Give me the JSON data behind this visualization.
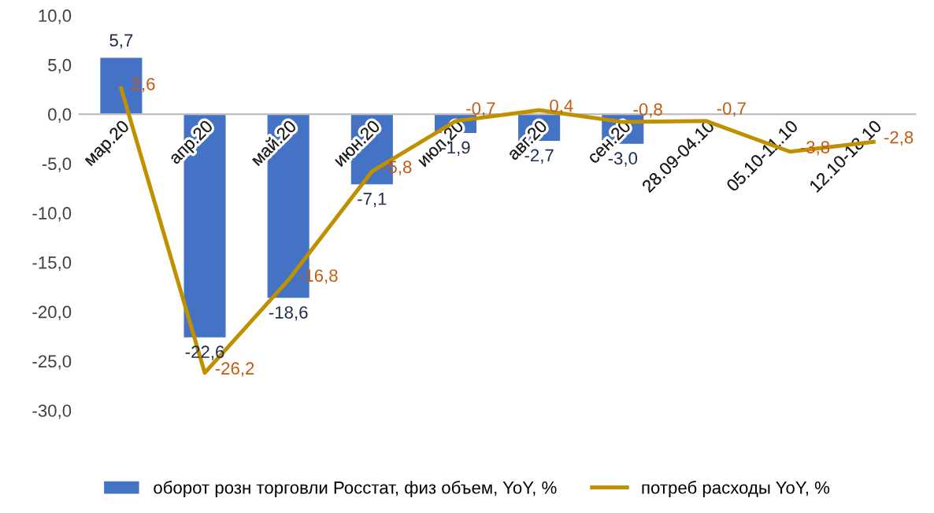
{
  "chart_data": {
    "type": "bar",
    "categories": [
      "мар.20",
      "апр.20",
      "май.20",
      "июн.20",
      "июл.20",
      "авг.20",
      "сен.20",
      "28.09-04.10",
      "05.10-11.10",
      "12.10-18.10"
    ],
    "series": [
      {
        "name": "оборот розн торговли Росстат, физ объем, YoY, %",
        "color": "#4472c4",
        "values": [
          5.7,
          -22.6,
          -18.6,
          -7.1,
          -1.9,
          -2.7,
          -3.0,
          null,
          null,
          null
        ],
        "value_labels": [
          "5,7",
          "-22,6",
          "-18,6",
          "-7,1",
          "-1,9",
          "-2,7",
          "-3,0",
          null,
          null,
          null
        ]
      },
      {
        "name": "потреб расходы YoY, %",
        "type": "line",
        "color": "#bf9000",
        "values": [
          2.6,
          -26.2,
          -16.8,
          -5.8,
          -0.7,
          0.4,
          -0.8,
          -0.7,
          -3.8,
          -2.8
        ],
        "value_labels": [
          "2,6",
          "-26,2",
          "-16,8",
          "-5,8",
          "-0,7",
          "0,4",
          "-0,8",
          "-0,7",
          "-3,8",
          "-2,8"
        ]
      }
    ],
    "ylim": [
      -30,
      10
    ],
    "yticks": [
      {
        "value": 10,
        "label": "10,0"
      },
      {
        "value": 5,
        "label": "5,0"
      },
      {
        "value": 0,
        "label": "0,0"
      },
      {
        "value": -5,
        "label": "-5,0"
      },
      {
        "value": -10,
        "label": "-10,0"
      },
      {
        "value": -15,
        "label": "-15,0"
      },
      {
        "value": -20,
        "label": "-20,0"
      },
      {
        "value": -25,
        "label": "-25,0"
      },
      {
        "value": -30,
        "label": "-30,0"
      }
    ],
    "grid": false,
    "legend": "bottom",
    "marker": "none",
    "line_style": "solid"
  }
}
